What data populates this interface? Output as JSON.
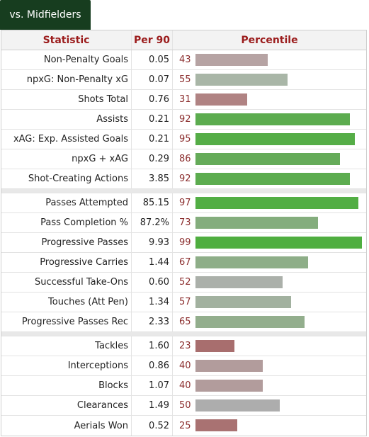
{
  "tab": {
    "label": "vs. Midfielders"
  },
  "columns": {
    "statistic": "Statistic",
    "per90": "Per 90",
    "percentile": "Percentile"
  },
  "groups": [
    [
      {
        "stat": "Non-Penalty Goals",
        "per90": "0.05",
        "pct": 43,
        "color": "#b6a3a3"
      },
      {
        "stat": "npxG: Non-Penalty xG",
        "per90": "0.07",
        "pct": 55,
        "color": "#a9b6a7"
      },
      {
        "stat": "Shots Total",
        "per90": "0.76",
        "pct": 31,
        "color": "#b08383"
      },
      {
        "stat": "Assists",
        "per90": "0.21",
        "pct": 92,
        "color": "#5cac4f"
      },
      {
        "stat": "xAG: Exp. Assisted Goals",
        "per90": "0.21",
        "pct": 95,
        "color": "#55ad47"
      },
      {
        "stat": "npxG + xAG",
        "per90": "0.29",
        "pct": 86,
        "color": "#65ab59"
      },
      {
        "stat": "Shot-Creating Actions",
        "per90": "3.85",
        "pct": 92,
        "color": "#5cac4f"
      }
    ],
    [
      {
        "stat": "Passes Attempted",
        "per90": "85.15",
        "pct": 97,
        "color": "#52ae44"
      },
      {
        "stat": "Pass Completion %",
        "per90": "87.2%",
        "pct": 73,
        "color": "#84ad7d"
      },
      {
        "stat": "Progressive Passes",
        "per90": "9.93",
        "pct": 99,
        "color": "#4fae40"
      },
      {
        "stat": "Progressive Carries",
        "per90": "1.44",
        "pct": 67,
        "color": "#8eae88"
      },
      {
        "stat": "Successful Take-Ons",
        "per90": "0.60",
        "pct": 52,
        "color": "#abb0aa"
      },
      {
        "stat": "Touches (Att Pen)",
        "per90": "1.34",
        "pct": 57,
        "color": "#a2b19f"
      },
      {
        "stat": "Progressive Passes Rec",
        "per90": "2.33",
        "pct": 65,
        "color": "#93ae8d"
      }
    ],
    [
      {
        "stat": "Tackles",
        "per90": "1.60",
        "pct": 23,
        "color": "#a86e6e"
      },
      {
        "stat": "Interceptions",
        "per90": "0.86",
        "pct": 40,
        "color": "#b29c9c"
      },
      {
        "stat": "Blocks",
        "per90": "1.07",
        "pct": 40,
        "color": "#b29c9c"
      },
      {
        "stat": "Clearances",
        "per90": "1.49",
        "pct": 50,
        "color": "#adadad"
      },
      {
        "stat": "Aerials Won",
        "per90": "0.52",
        "pct": 25,
        "color": "#a97272"
      }
    ]
  ]
}
